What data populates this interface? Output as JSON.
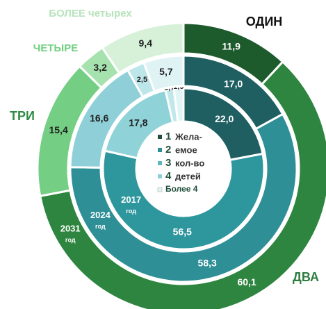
{
  "chart_data": {
    "type": "donut",
    "categories": [
      "ОДИН",
      "ДВА",
      "ТРИ",
      "ЧЕТЫРЕ",
      "БОЛЕЕ четырех"
    ],
    "category_colors": [
      "#111111",
      "#2e7d3e",
      "#2e8b45",
      "#6fcf7f",
      "#b6e3bb"
    ],
    "series": [
      {
        "name": "2017",
        "sublabel": "год",
        "values": [
          22.0,
          56.5,
          17.8,
          1.7,
          1.9
        ],
        "value_labels": [
          "22,0",
          "56,5",
          "17,8",
          "1,7",
          "1,9"
        ],
        "colors": [
          "#1f5f62",
          "#2e979d",
          "#8fd2d8",
          "#c0e8eb",
          "#e2f5f6"
        ]
      },
      {
        "name": "2024",
        "sublabel": "год",
        "values": [
          17.0,
          58.3,
          16.6,
          2.5,
          5.7
        ],
        "value_labels": [
          "17,0",
          "58,3",
          "16,6",
          "2,5",
          "5,7"
        ],
        "colors": [
          "#1f5f62",
          "#2e8f96",
          "#8fd0d8",
          "#bde6ea",
          "#dff3f5"
        ]
      },
      {
        "name": "2031",
        "sublabel": "год",
        "values": [
          11.9,
          60.1,
          15.4,
          3.2,
          9.4
        ],
        "value_labels": [
          "11,9",
          "60,1",
          "15,4",
          "3,2",
          "9,4"
        ],
        "colors": [
          "#1d5a2c",
          "#2e8540",
          "#74cf84",
          "#a6e2ae",
          "#d6f1d8"
        ]
      }
    ],
    "legend": {
      "labels": [
        "1",
        "2",
        "3",
        "4",
        "Более 4"
      ],
      "text": [
        "Жела-",
        "емое",
        "кол-во",
        "детей"
      ],
      "colors": [
        "#1f4e3a",
        "#2e8f96",
        "#5fb8c0",
        "#8fd0d8",
        "#dff3f5"
      ]
    }
  }
}
